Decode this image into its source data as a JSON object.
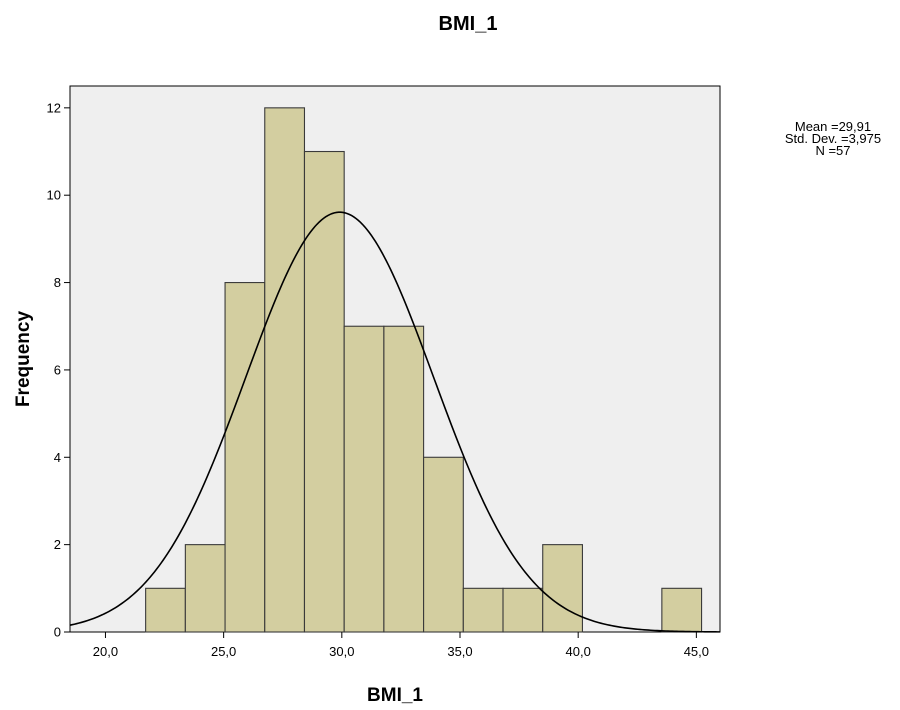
{
  "chart_data": {
    "type": "bar",
    "subtype": "histogram",
    "title": "BMI_1",
    "xlabel": "BMI_1",
    "ylabel": "Frequency",
    "xlim": [
      18.5,
      46.0
    ],
    "ylim": [
      0,
      12.5
    ],
    "x_ticks": [
      20,
      25,
      30,
      35,
      40,
      45
    ],
    "x_tick_labels": [
      "20,0",
      "25,0",
      "30,0",
      "35,0",
      "40,0",
      "45,0"
    ],
    "y_ticks": [
      0,
      2,
      4,
      6,
      8,
      10,
      12
    ],
    "y_tick_labels": [
      "0",
      "2",
      "4",
      "6",
      "8",
      "10",
      "12"
    ],
    "bins": [
      {
        "start": 21.7,
        "end": 23.38,
        "count": 1
      },
      {
        "start": 23.38,
        "end": 25.06,
        "count": 2
      },
      {
        "start": 25.06,
        "end": 26.74,
        "count": 8
      },
      {
        "start": 26.74,
        "end": 28.42,
        "count": 12
      },
      {
        "start": 28.42,
        "end": 30.1,
        "count": 11
      },
      {
        "start": 30.1,
        "end": 31.78,
        "count": 7
      },
      {
        "start": 31.78,
        "end": 33.46,
        "count": 7
      },
      {
        "start": 33.46,
        "end": 35.14,
        "count": 4
      },
      {
        "start": 35.14,
        "end": 36.82,
        "count": 1
      },
      {
        "start": 36.82,
        "end": 38.5,
        "count": 1
      },
      {
        "start": 38.5,
        "end": 40.18,
        "count": 2
      },
      {
        "start": 40.18,
        "end": 41.86,
        "count": 0
      },
      {
        "start": 41.86,
        "end": 43.54,
        "count": 0
      },
      {
        "start": 43.54,
        "end": 45.22,
        "count": 1
      }
    ],
    "normal_curve": {
      "mean": 29.91,
      "std": 3.975,
      "n": 57
    },
    "stats": [
      {
        "label": "Mean =29,91"
      },
      {
        "label": "Std. Dev. =3,975"
      },
      {
        "label": "N =57"
      }
    ],
    "grid": false,
    "legend": "none",
    "colors": {
      "bar_fill": "#d3cea0",
      "bar_stroke": "#3a3a3a",
      "plot_background": "#efefef",
      "curve": "#000000"
    }
  }
}
